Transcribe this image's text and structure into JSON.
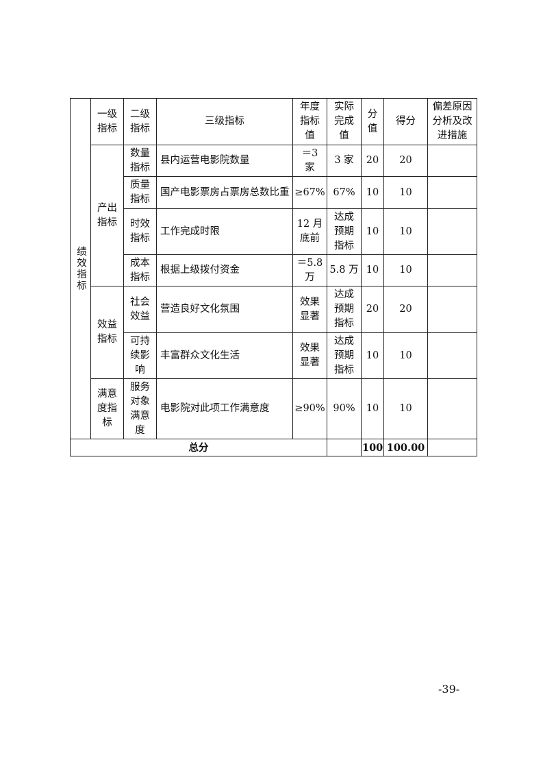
{
  "table": {
    "side_label": "绩效指标",
    "headers": [
      "一级\n指标",
      "二级\n指标",
      "三级指标",
      "年度\n指标\n值",
      "实际\n完成\n值",
      "分\n值",
      "得分",
      "偏差原因\n分析及改\n进措施"
    ],
    "groups": {
      "output": "产出\n指标",
      "benefit": "效益\n指标",
      "satisfaction": "满意\n度指\n标"
    },
    "rows": [
      {
        "level2": "数量\n指标",
        "level3": "县内运营电影院数量",
        "target": "＝3\n家",
        "actual": "3 家",
        "weight": "20",
        "score": "20",
        "remark": ""
      },
      {
        "level2": "质量\n指标",
        "level3": "国产电影票房占票房总数比重",
        "target": "≥67%",
        "actual": "67%",
        "weight": "10",
        "score": "10",
        "remark": ""
      },
      {
        "level2": "时效\n指标",
        "level3": "工作完成时限",
        "target": "12 月\n底前",
        "actual": "达成\n预期\n指标",
        "weight": "10",
        "score": "10",
        "remark": ""
      },
      {
        "level2": "成本\n指标",
        "level3": "根据上级拨付资金",
        "target": "＝5.8\n万",
        "actual": "5.8 万",
        "weight": "10",
        "score": "10",
        "remark": ""
      },
      {
        "level2": "社会\n效益",
        "level3": "营造良好文化氛围",
        "target": "效果\n显著",
        "actual": "达成\n预期\n指标",
        "weight": "20",
        "score": "20",
        "remark": ""
      },
      {
        "level2": "可持\n续影\n响",
        "level3": "丰富群众文化生活",
        "target": "效果\n显著",
        "actual": "达成\n预期\n指标",
        "weight": "10",
        "score": "10",
        "remark": ""
      },
      {
        "level2": "服务\n对象\n满意\n度",
        "level3": "电影院对此项工作满意度",
        "target": "≥90%",
        "actual": "90%",
        "weight": "10",
        "score": "10",
        "remark": ""
      }
    ],
    "total": {
      "label": "总分",
      "weight": "100",
      "score": "100.00"
    }
  },
  "page_number": "-39-"
}
